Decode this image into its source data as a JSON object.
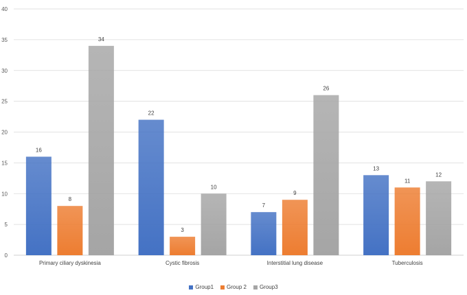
{
  "chart_data": {
    "type": "bar",
    "categories": [
      "Primary ciliary dyskinesia",
      "Cystic fibrosis",
      "Interstitial lung disease",
      "Tuberculosis"
    ],
    "series": [
      {
        "name": "Group1",
        "values": [
          16,
          22,
          7,
          13
        ],
        "color": "#4472C4"
      },
      {
        "name": "Group 2",
        "values": [
          8,
          3,
          9,
          11
        ],
        "color": "#ED7D31"
      },
      {
        "name": "Group3",
        "values": [
          34,
          10,
          26,
          12
        ],
        "color": "#A5A5A5"
      }
    ],
    "ylim": [
      0,
      40
    ],
    "yticks": [
      "0",
      "5",
      "10",
      "15",
      "20",
      "25",
      "30",
      "35",
      "40"
    ],
    "grid": true,
    "legend_position": "bottom"
  }
}
